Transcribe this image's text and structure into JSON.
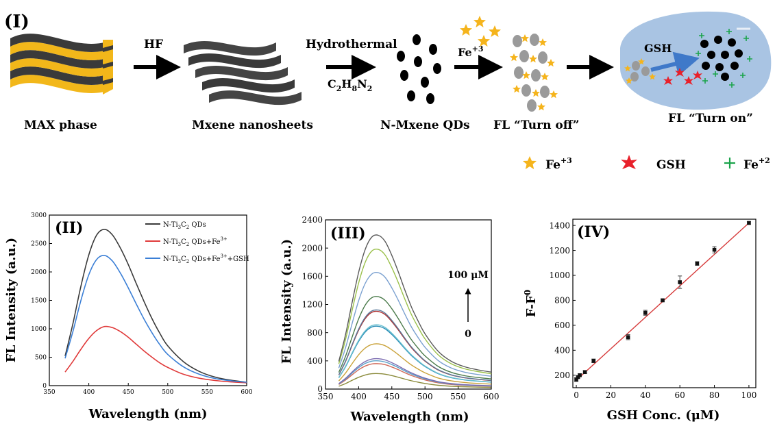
{
  "panel_labels": {
    "I": "(I)",
    "II": "(II)",
    "III": "(III)",
    "IV": "(IV)"
  },
  "scheme": {
    "steps": [
      {
        "label": "MAX phase"
      },
      {
        "label": "Mxene nanosheets"
      },
      {
        "label": "N-Mxene QDs"
      },
      {
        "label": "FL “Turn off”"
      },
      {
        "label": "FL “Turn on”"
      }
    ],
    "arrows": [
      {
        "top": "HF",
        "bottom": ""
      },
      {
        "top": "Hydrothermal",
        "bottom": "C2H8N2"
      },
      {
        "top": "Fe+3",
        "bottom": ""
      },
      {
        "top": "",
        "bottom": ""
      }
    ],
    "cell_label": "GSH",
    "legend": [
      {
        "symbol": "star",
        "label": "Fe+3",
        "color": "#f5b41c"
      },
      {
        "symbol": "burst",
        "label": "GSH",
        "color": "#e8202a"
      },
      {
        "symbol": "cross",
        "label": "Fe+2",
        "color": "#1aa34a"
      }
    ],
    "colors": {
      "layer_dark": "#3a3a3a",
      "layer_gold": "#f2b71a",
      "cell": "#a9c4e3",
      "arrow_blue": "#3f79c9"
    }
  },
  "chart_data": [
    {
      "id": "II",
      "type": "line",
      "xlabel": "Wavelength (nm)",
      "ylabel": "FL Intensity (a.u.)",
      "xlim": [
        350,
        600
      ],
      "ylim": [
        0,
        3000
      ],
      "xticks": [
        350,
        400,
        450,
        500,
        550,
        600
      ],
      "yticks": [
        0,
        500,
        1000,
        1500,
        2000,
        2500,
        3000
      ],
      "legend_position": "top-right",
      "series": [
        {
          "name": "N-Ti3C2 QDs",
          "color": "#3a3a3a",
          "x": [
            370,
            380,
            390,
            400,
            410,
            420,
            430,
            440,
            450,
            460,
            470,
            480,
            490,
            500,
            520,
            540,
            560,
            580,
            600
          ],
          "values": [
            520,
            1100,
            1750,
            2300,
            2650,
            2750,
            2650,
            2420,
            2130,
            1800,
            1480,
            1180,
            920,
            700,
            420,
            250,
            150,
            95,
            60
          ]
        },
        {
          "name": "N-Ti3C2 QDs+Fe3+",
          "color": "#e03a3a",
          "x": [
            370,
            380,
            390,
            400,
            410,
            420,
            430,
            440,
            450,
            460,
            470,
            480,
            490,
            500,
            520,
            540,
            560,
            580,
            600
          ],
          "values": [
            240,
            430,
            640,
            830,
            970,
            1040,
            1020,
            950,
            850,
            730,
            610,
            500,
            400,
            320,
            200,
            130,
            90,
            65,
            50
          ]
        },
        {
          "name": "N-Ti3C2 QDs+Fe3++GSH",
          "color": "#3b7fd6",
          "x": [
            370,
            380,
            390,
            400,
            410,
            420,
            430,
            440,
            450,
            460,
            470,
            480,
            490,
            500,
            520,
            540,
            560,
            580,
            600
          ],
          "values": [
            480,
            960,
            1500,
            1950,
            2220,
            2290,
            2190,
            1980,
            1720,
            1440,
            1170,
            930,
            720,
            550,
            330,
            200,
            125,
            85,
            60
          ]
        }
      ]
    },
    {
      "id": "III",
      "type": "line",
      "xlabel": "Wavelength (nm)",
      "ylabel": "FL Intensity (a.u.)",
      "xlim": [
        350,
        600
      ],
      "ylim": [
        0,
        2400
      ],
      "xticks": [
        350,
        400,
        450,
        500,
        550,
        600
      ],
      "yticks": [
        0,
        400,
        800,
        1200,
        1600,
        2000,
        2400
      ],
      "annotation_top": "100 μM",
      "annotation_bottom": "0",
      "x": [
        370,
        380,
        390,
        400,
        410,
        420,
        430,
        440,
        450,
        460,
        470,
        480,
        490,
        500,
        520,
        540,
        560,
        580,
        600
      ],
      "shape": [
        0.18,
        0.35,
        0.56,
        0.76,
        0.91,
        0.99,
        1.0,
        0.96,
        0.87,
        0.76,
        0.64,
        0.53,
        0.44,
        0.36,
        0.245,
        0.18,
        0.145,
        0.125,
        0.11
      ],
      "series": [
        {
          "peak": 220,
          "color": "#8a8a3a"
        },
        {
          "peak": 360,
          "color": "#d06a5a"
        },
        {
          "peak": 400,
          "color": "#5aa0c8"
        },
        {
          "peak": 430,
          "color": "#7a6ab0"
        },
        {
          "peak": 640,
          "color": "#c9a23a"
        },
        {
          "peak": 890,
          "color": "#2e8fb8"
        },
        {
          "peak": 910,
          "color": "#6ac0d0"
        },
        {
          "peak": 1100,
          "color": "#b03030"
        },
        {
          "peak": 1120,
          "color": "#5a7a9a"
        },
        {
          "peak": 1310,
          "color": "#4a7a4a"
        },
        {
          "peak": 1650,
          "color": "#7aa0d0"
        },
        {
          "peak": 1980,
          "color": "#9ac04a"
        },
        {
          "peak": 2180,
          "color": "#5a5a5a"
        }
      ]
    },
    {
      "id": "IV",
      "type": "scatter",
      "xlabel": "GSH Conc. (μM)",
      "ylabel": "F-F0",
      "xlim": [
        -2,
        104
      ],
      "ylim": [
        100,
        1450
      ],
      "xticks": [
        0,
        20,
        40,
        60,
        80,
        100
      ],
      "yticks": [
        200,
        400,
        600,
        800,
        1000,
        1200,
        1400
      ],
      "fit_color": "#d63a3a",
      "fit_line": {
        "x": [
          0,
          100
        ],
        "y": [
          160,
          1420
        ]
      },
      "points": [
        {
          "x": 0,
          "y": 165,
          "err": 15
        },
        {
          "x": 1,
          "y": 185,
          "err": 10
        },
        {
          "x": 2,
          "y": 200,
          "err": 12
        },
        {
          "x": 5,
          "y": 225,
          "err": 12
        },
        {
          "x": 10,
          "y": 315,
          "err": 15
        },
        {
          "x": 30,
          "y": 505,
          "err": 20
        },
        {
          "x": 40,
          "y": 700,
          "err": 20
        },
        {
          "x": 50,
          "y": 800,
          "err": 12
        },
        {
          "x": 60,
          "y": 945,
          "err": 50
        },
        {
          "x": 70,
          "y": 1095,
          "err": 15
        },
        {
          "x": 80,
          "y": 1205,
          "err": 25
        },
        {
          "x": 100,
          "y": 1420,
          "err": 10
        }
      ]
    }
  ]
}
